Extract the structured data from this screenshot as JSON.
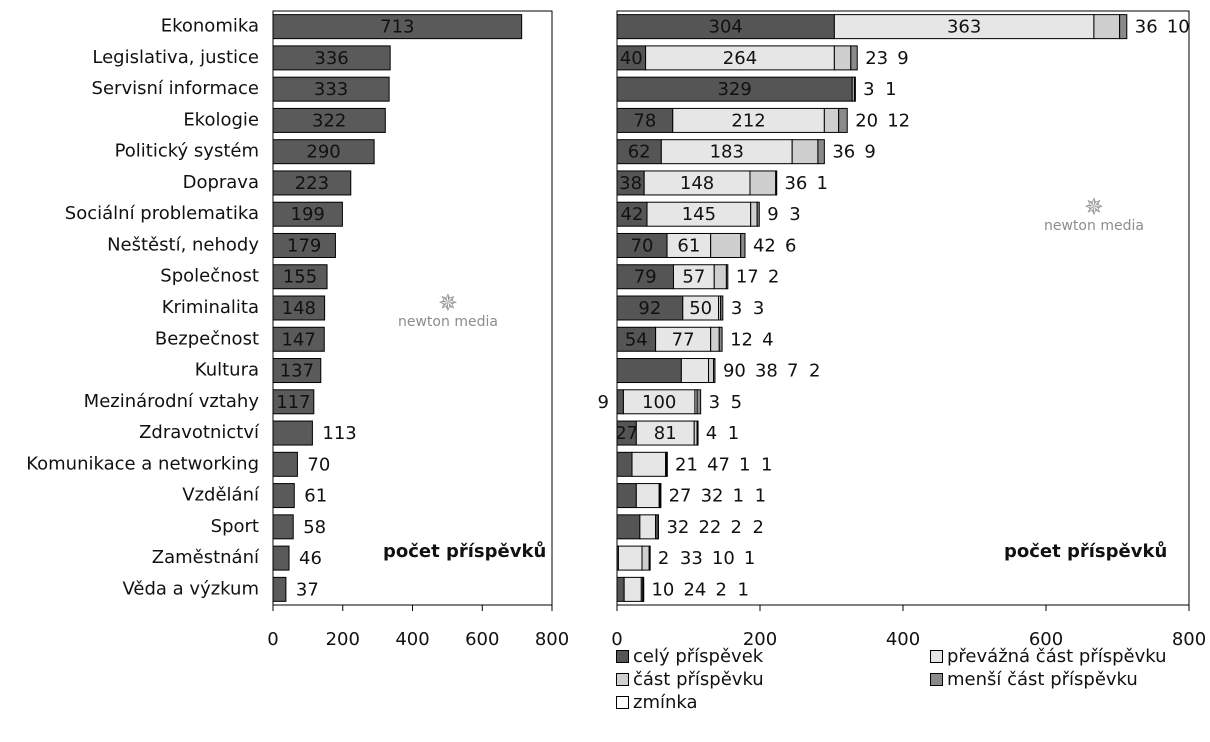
{
  "chart_data": [
    {
      "type": "bar",
      "orientation": "horizontal",
      "categories": [
        "Ekonomika",
        "Legislativa, justice",
        "Servisní informace",
        "Ekologie",
        "Politický systém",
        "Doprava",
        "Sociální problematika",
        "Neštěstí, nehody",
        "Společnost",
        "Kriminalita",
        "Bezpečnost",
        "Kultura",
        "Mezinárodní vztahy",
        "Zdravotnictví",
        "Komunikace a networking",
        "Vzdělání",
        "Sport",
        "Zaměstnání",
        "Věda a výzkum"
      ],
      "values": [
        713,
        336,
        333,
        322,
        290,
        223,
        199,
        179,
        155,
        148,
        147,
        137,
        117,
        113,
        70,
        61,
        58,
        46,
        37
      ],
      "xlabel": "počet příspěvků",
      "xlim": [
        0,
        800
      ],
      "xticks": [
        "0",
        "200",
        "400",
        "600",
        "800"
      ],
      "grid": false,
      "colors": {
        "bar": "#5a5a5a"
      }
    },
    {
      "type": "bar",
      "orientation": "horizontal",
      "stacked": true,
      "categories": [
        "Ekonomika",
        "Legislativa, justice",
        "Servisní informace",
        "Ekologie",
        "Politický systém",
        "Doprava",
        "Sociální problematika",
        "Neštěstí, nehody",
        "Společnost",
        "Kriminalita",
        "Bezpečnost",
        "Kultura",
        "Mezinárodní vztahy",
        "Zdravotnictví",
        "Komunikace a networking",
        "Vzdělání",
        "Sport",
        "Zaměstnání",
        "Věda a výzkum"
      ],
      "series": [
        {
          "name": "celý příspěvek",
          "values": [
            304,
            40,
            329,
            78,
            62,
            38,
            42,
            70,
            79,
            92,
            54,
            90,
            9,
            27,
            21,
            27,
            32,
            2,
            10
          ]
        },
        {
          "name": "převážná část příspěvku",
          "values": [
            363,
            264,
            0,
            212,
            183,
            148,
            145,
            61,
            57,
            50,
            77,
            38,
            100,
            81,
            47,
            32,
            22,
            33,
            24
          ]
        },
        {
          "name": "část příspěvku",
          "values": [
            36,
            23,
            3,
            20,
            36,
            36,
            9,
            42,
            17,
            3,
            12,
            7,
            3,
            4,
            1,
            1,
            2,
            10,
            2
          ]
        },
        {
          "name": "menší část příspěvku",
          "values": [
            10,
            9,
            1,
            12,
            9,
            1,
            3,
            6,
            2,
            3,
            4,
            2,
            5,
            1,
            1,
            1,
            2,
            1,
            1
          ]
        },
        {
          "name": "zmínka",
          "values": [
            0,
            0,
            0,
            0,
            0,
            0,
            0,
            0,
            0,
            0,
            0,
            0,
            0,
            0,
            0,
            0,
            0,
            0,
            0
          ]
        }
      ],
      "labels": [
        [
          "304",
          "363",
          "36",
          "10"
        ],
        [
          "40",
          "264",
          "23",
          "9"
        ],
        [
          "329",
          "3",
          "1"
        ],
        [
          "78",
          "212",
          "20",
          "12"
        ],
        [
          "62",
          "183",
          "36",
          "9"
        ],
        [
          "38",
          "148",
          "36",
          "1"
        ],
        [
          "42",
          "145",
          "9",
          "3"
        ],
        [
          "70",
          "61",
          "42",
          "6"
        ],
        [
          "79",
          "57",
          "17",
          "2"
        ],
        [
          "92",
          "50",
          "3",
          "3"
        ],
        [
          "54",
          "77",
          "12",
          "4"
        ],
        [
          "90",
          "38",
          "7",
          "2"
        ],
        [
          "9",
          "100",
          "3",
          "5"
        ],
        [
          "27",
          "81",
          "4",
          "1"
        ],
        [
          "21",
          "47",
          "1",
          "1"
        ],
        [
          "27",
          "32",
          "1",
          "1"
        ],
        [
          "32",
          "22",
          "2",
          "2"
        ],
        [
          "2",
          "33",
          "10",
          "1"
        ],
        [
          "10",
          "24",
          "2",
          "1"
        ]
      ],
      "xlabel": "počet příspěvků",
      "xlim": [
        0,
        800
      ],
      "xticks": [
        "0",
        "200",
        "400",
        "600",
        "800"
      ],
      "grid": false,
      "legend_position": "bottom",
      "colors": {
        "full": "#555555",
        "major": "#e6e6e6",
        "part": "#cfcfcf",
        "minor": "#8a8a8a",
        "mention": "#ffffff"
      }
    }
  ],
  "legend": {
    "items": [
      {
        "label": "celý příspěvek",
        "color": "#555555"
      },
      {
        "label": "převážná část příspěvku",
        "color": "#e6e6e6"
      },
      {
        "label": "část příspěvku",
        "color": "#cfcfcf"
      },
      {
        "label": "menší část příspěvku",
        "color": "#8a8a8a"
      },
      {
        "label": "zmínka",
        "color": "#ffffff"
      }
    ]
  },
  "watermark": "newton media",
  "watermark_icon": "newton-bird-logo"
}
